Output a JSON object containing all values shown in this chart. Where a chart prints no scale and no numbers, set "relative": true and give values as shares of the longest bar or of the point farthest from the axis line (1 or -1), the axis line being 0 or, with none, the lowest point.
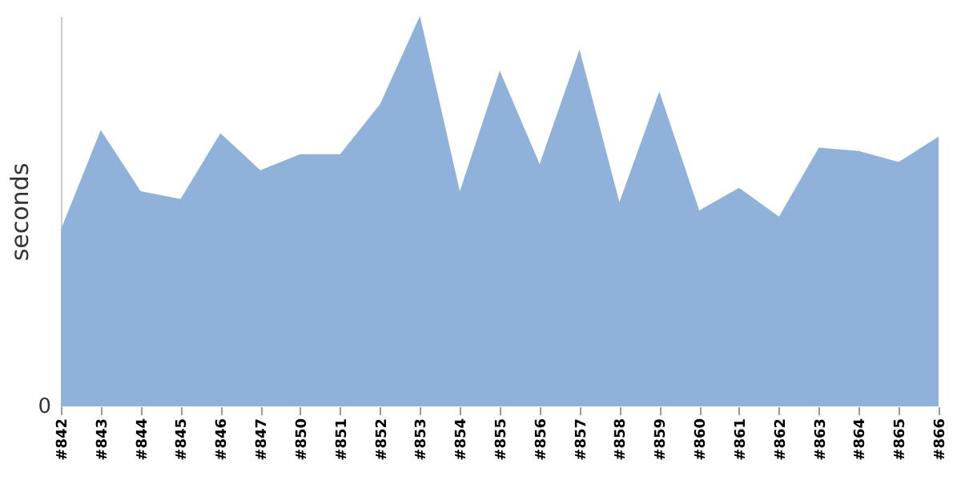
{
  "chart_data": {
    "type": "area",
    "relative": true,
    "ylabel": "seconds",
    "color": "#8fb1da",
    "annotations": [
      "0"
    ],
    "categories": [
      "#842",
      "#843",
      "#844",
      "#845",
      "#846",
      "#847",
      "#850",
      "#851",
      "#852",
      "#853",
      "#854",
      "#855",
      "#856",
      "#857",
      "#858",
      "#859",
      "#860",
      "#861",
      "#862",
      "#863",
      "#864",
      "#865",
      "#866"
    ],
    "values": [
      0.453,
      0.708,
      0.551,
      0.531,
      0.7,
      0.605,
      0.646,
      0.646,
      0.774,
      1,
      0.551,
      0.86,
      0.621,
      0.914,
      0.523,
      0.807,
      0.502,
      0.56,
      0.486,
      0.663,
      0.654,
      0.626,
      0.691
    ]
  }
}
